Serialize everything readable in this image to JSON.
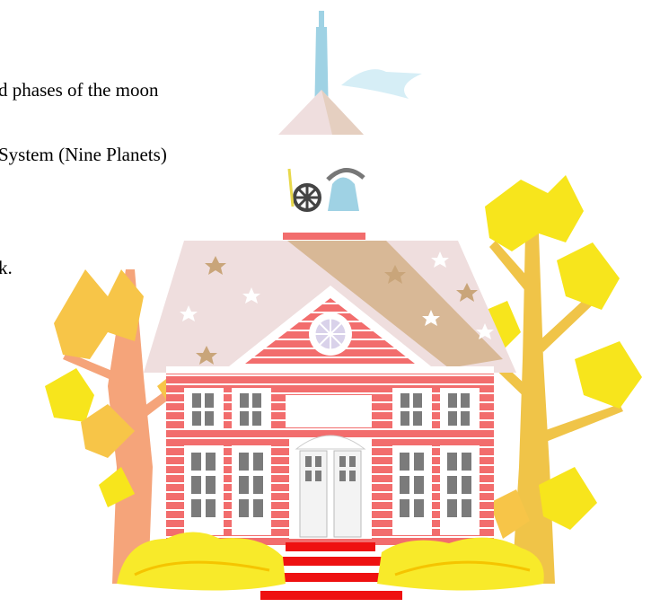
{
  "text_lines": [
    "d phases of the moon",
    "System (Nine Planets)",
    "k."
  ],
  "illustration": {
    "subject": "schoolhouse-clipart",
    "colors": {
      "wall": "#f26d6d",
      "wall_stripe": "#ffffff",
      "roof": "#efdede",
      "roof_shadow": "#d8b896",
      "window_pane": "#7b7b7b",
      "steps": "#ee1111",
      "spire": "#9fd2e4",
      "flag": "#d6eef6",
      "tree_left": "#f5a47a",
      "tree_right": "#f0c448",
      "foliage": "#f7e51c",
      "bush": "#f8ea2a"
    }
  }
}
